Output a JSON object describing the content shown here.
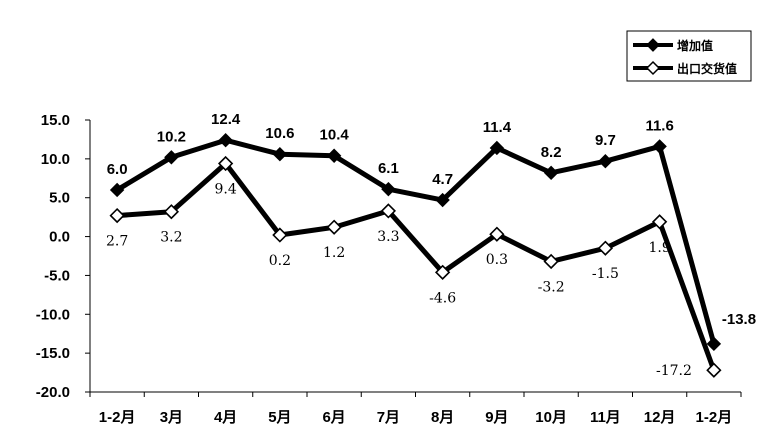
{
  "chart_data": {
    "type": "line",
    "categories": [
      "1-2月",
      "3月",
      "4月",
      "5月",
      "6月",
      "7月",
      "8月",
      "9月",
      "10月",
      "11月",
      "12月",
      "1-2月"
    ],
    "series": [
      {
        "name": "增加值",
        "values": [
          6.0,
          10.2,
          12.4,
          10.6,
          10.4,
          6.1,
          4.7,
          11.4,
          8.2,
          9.7,
          11.6,
          -13.8
        ],
        "labels": [
          "6.0",
          "10.2",
          "12.4",
          "10.6",
          "10.4",
          "6.1",
          "4.7",
          "11.4",
          "8.2",
          "9.7",
          "11.6",
          "-13.8"
        ],
        "marker": "filled-diamond",
        "color": "#000000"
      },
      {
        "name": "出口交货值",
        "values": [
          2.7,
          3.2,
          9.4,
          0.2,
          1.2,
          3.3,
          -4.6,
          0.3,
          -3.2,
          -1.5,
          1.9,
          -17.2
        ],
        "labels": [
          "2.7",
          "3.2",
          "9.4",
          "0.2",
          "1.2",
          "3.3",
          "-4.6",
          "0.3",
          "-3.2",
          "-1.5",
          "1.9",
          "-17.2"
        ],
        "marker": "hollow-diamond",
        "color": "#000000"
      }
    ],
    "ylim": [
      -20.0,
      15.0
    ],
    "ytick_labels": [
      "15.0",
      "10.0",
      "5.0",
      "0.0",
      "-5.0",
      "-10.0",
      "-15.0",
      "-20.0"
    ],
    "ytick_values": [
      15,
      10,
      5,
      0,
      -5,
      -10,
      -15,
      -20
    ],
    "title": "",
    "xlabel": "",
    "ylabel": "",
    "grid": false,
    "legend_position": "top-right"
  }
}
